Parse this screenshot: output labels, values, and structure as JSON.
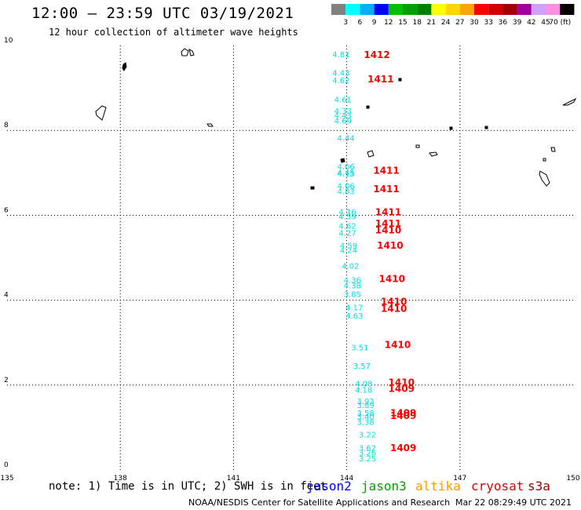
{
  "title": "12:00 – 23:59 UTC 03/19/2021",
  "subtitle": "12 hour collection of altimeter wave heights",
  "legend": {
    "colors": [
      "#808080",
      "#00ffff",
      "#00b0ff",
      "#0000ff",
      "#00c000",
      "#00a000",
      "#008000",
      "#ffff00",
      "#ffd700",
      "#ffa500",
      "#ff0000",
      "#d00000",
      "#a00000",
      "#a000a0",
      "#d0a0ff",
      "#ff90e0",
      "#000000"
    ],
    "labels": [
      "3",
      "6",
      "9",
      "12",
      "15",
      "18",
      "21",
      "24",
      "27",
      "30",
      "33",
      "36",
      "39",
      "42",
      "45",
      "70 (ft)"
    ]
  },
  "chart_data": {
    "type": "scatter",
    "xlim": [
      135,
      150
    ],
    "ylim": [
      0,
      10
    ],
    "x_ticks": [
      "135",
      "138",
      "141",
      "144",
      "147",
      "150"
    ],
    "y_ticks": [
      "0",
      "2",
      "4",
      "6",
      "8",
      "10"
    ],
    "wave_heights": [
      {
        "lon": 143.85,
        "lat": 9.72,
        "v": "4.81"
      },
      {
        "lon": 143.85,
        "lat": 9.29,
        "v": "4.43"
      },
      {
        "lon": 143.85,
        "lat": 9.11,
        "v": "4.62"
      },
      {
        "lon": 143.9,
        "lat": 8.66,
        "v": "4.61"
      },
      {
        "lon": 143.9,
        "lat": 8.39,
        "v": "4.33"
      },
      {
        "lon": 143.9,
        "lat": 8.29,
        "v": "4.43"
      },
      {
        "lon": 143.9,
        "lat": 8.16,
        "v": "4.69"
      },
      {
        "lon": 143.98,
        "lat": 7.75,
        "v": "4.44"
      },
      {
        "lon": 143.98,
        "lat": 7.08,
        "v": "4.06"
      },
      {
        "lon": 143.98,
        "lat": 6.94,
        "v": "4.45"
      },
      {
        "lon": 143.98,
        "lat": 6.91,
        "v": "4.15"
      },
      {
        "lon": 143.98,
        "lat": 6.63,
        "v": "4.06"
      },
      {
        "lon": 143.98,
        "lat": 6.5,
        "v": "4.83"
      },
      {
        "lon": 144.02,
        "lat": 6.02,
        "v": "4.16"
      },
      {
        "lon": 144.02,
        "lat": 5.91,
        "v": "4.59"
      },
      {
        "lon": 144.02,
        "lat": 5.68,
        "v": "4.62"
      },
      {
        "lon": 144.02,
        "lat": 5.52,
        "v": "4.27"
      },
      {
        "lon": 144.05,
        "lat": 5.22,
        "v": "4.59"
      },
      {
        "lon": 144.05,
        "lat": 5.11,
        "v": "4.24"
      },
      {
        "lon": 144.1,
        "lat": 4.74,
        "v": "4.02"
      },
      {
        "lon": 144.15,
        "lat": 4.41,
        "v": "4.36"
      },
      {
        "lon": 144.15,
        "lat": 4.28,
        "v": "4.38"
      },
      {
        "lon": 144.15,
        "lat": 4.08,
        "v": "3.85"
      },
      {
        "lon": 144.2,
        "lat": 3.76,
        "v": "4.17"
      },
      {
        "lon": 144.2,
        "lat": 3.57,
        "v": "4.63"
      },
      {
        "lon": 144.35,
        "lat": 2.82,
        "v": "3.51"
      },
      {
        "lon": 144.4,
        "lat": 2.38,
        "v": "3.57"
      },
      {
        "lon": 144.45,
        "lat": 1.97,
        "v": "4.08"
      },
      {
        "lon": 144.45,
        "lat": 1.82,
        "v": "4.18"
      },
      {
        "lon": 144.5,
        "lat": 1.55,
        "v": "3.93"
      },
      {
        "lon": 144.5,
        "lat": 1.46,
        "v": "3.89"
      },
      {
        "lon": 144.5,
        "lat": 1.28,
        "v": "3.58"
      },
      {
        "lon": 144.5,
        "lat": 1.19,
        "v": "3.40"
      },
      {
        "lon": 144.5,
        "lat": 1.06,
        "v": "3.38"
      },
      {
        "lon": 144.55,
        "lat": 0.77,
        "v": "3.22"
      },
      {
        "lon": 144.55,
        "lat": 0.45,
        "v": "3.62"
      },
      {
        "lon": 144.55,
        "lat": 0.34,
        "v": "3.26"
      },
      {
        "lon": 144.55,
        "lat": 0.2,
        "v": "3.25"
      }
    ],
    "track_labels": [
      {
        "lon": 144.8,
        "lat": 9.7,
        "v": "1412"
      },
      {
        "lon": 144.9,
        "lat": 9.13,
        "v": "1411"
      },
      {
        "lon": 145.05,
        "lat": 6.98,
        "v": "1411"
      },
      {
        "lon": 145.05,
        "lat": 6.54,
        "v": "1411"
      },
      {
        "lon": 145.1,
        "lat": 6.0,
        "v": "1411"
      },
      {
        "lon": 145.1,
        "lat": 5.73,
        "v": "1411"
      },
      {
        "lon": 145.1,
        "lat": 5.57,
        "v": "1410"
      },
      {
        "lon": 145.15,
        "lat": 5.21,
        "v": "1410"
      },
      {
        "lon": 145.2,
        "lat": 4.43,
        "v": "1410"
      },
      {
        "lon": 145.25,
        "lat": 3.89,
        "v": "1410"
      },
      {
        "lon": 145.25,
        "lat": 3.72,
        "v": "1410"
      },
      {
        "lon": 145.35,
        "lat": 2.87,
        "v": "1410"
      },
      {
        "lon": 145.45,
        "lat": 1.99,
        "v": "1410"
      },
      {
        "lon": 145.45,
        "lat": 1.84,
        "v": "1409"
      },
      {
        "lon": 145.5,
        "lat": 1.27,
        "v": "1409"
      },
      {
        "lon": 145.5,
        "lat": 1.2,
        "v": "1409"
      },
      {
        "lon": 145.5,
        "lat": 0.44,
        "v": "1409"
      }
    ]
  },
  "footer": {
    "note": "note: 1) Time is in UTC; 2) SWH is in feet",
    "credit": "NOAA/NESDIS Center for Satellite Applications and Research",
    "timestamp": "Mar 22 08:29:49 UTC 2021",
    "satellites": [
      {
        "name": "jason2",
        "color": "#0000ff"
      },
      {
        "name": "jason3",
        "color": "#00a000"
      },
      {
        "name": "altika",
        "color": "#ff9900"
      },
      {
        "name": "cryosat",
        "color": "#e00000"
      },
      {
        "name": "s3a",
        "color": "#990000"
      }
    ]
  },
  "colors": {
    "wave_height_text": "#00e0e0",
    "track_label_text": "#ff0000",
    "gridline": "#000000",
    "coastline": "#000000"
  }
}
